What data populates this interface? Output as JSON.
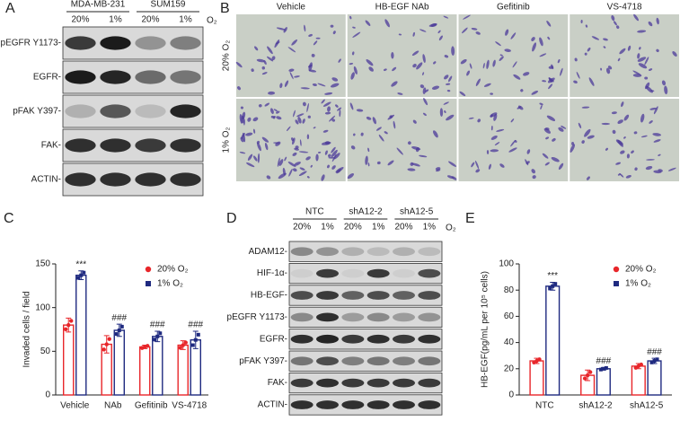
{
  "panels": {
    "A": {
      "letter": "A",
      "groups": [
        "MDA-MB-231",
        "SUM159"
      ],
      "lanes": [
        "20%",
        "1%",
        "20%",
        "1%"
      ],
      "gas": "O₂",
      "rows": [
        "pEGFR Y1173-",
        "EGFR-",
        "pFAK Y397-",
        "FAK-",
        "ACTIN-"
      ]
    },
    "B": {
      "letter": "B",
      "columns": [
        "Vehicle",
        "HB-EGF NAb",
        "Gefitinib",
        "VS-4718"
      ],
      "rows": [
        "20% O₂",
        "1% O₂"
      ]
    },
    "D": {
      "letter": "D",
      "groups": [
        "NTC",
        "shA12-2",
        "shA12-5"
      ],
      "lanes": [
        "20%",
        "1%",
        "20%",
        "1%",
        "20%",
        "1%"
      ],
      "gas": "O₂",
      "rows": [
        "ADAM12-",
        "HIF-1α-",
        "HB-EGF-",
        "pEGFR Y1173-",
        "EGFR-",
        "pFAK Y397-",
        "FAK-",
        "ACTIN-"
      ]
    }
  },
  "chart_data": [
    {
      "type": "bar",
      "panel_label": "C",
      "ylabel": "Invaded cells / field",
      "categories": [
        "Vehicle",
        "NAb",
        "Gefitinib",
        "VS-4718"
      ],
      "series": [
        {
          "name": "20% O₂",
          "color": "#e8262a",
          "values": [
            80,
            58,
            55,
            57
          ],
          "errors": [
            8,
            10,
            2,
            5
          ]
        },
        {
          "name": "1% O₂",
          "color": "#1f2a80",
          "values": [
            137,
            74,
            67,
            63
          ],
          "errors": [
            5,
            7,
            6,
            10
          ],
          "annotations": [
            "***",
            "###",
            "###",
            "###"
          ]
        }
      ],
      "ylim": [
        0,
        150
      ],
      "yticks": [
        0,
        50,
        100,
        150
      ]
    },
    {
      "type": "bar",
      "panel_label": "E",
      "ylabel": "HB-EGF(pg/mL per 10⁵ cells)",
      "categories": [
        "NTC",
        "shA12-2",
        "shA12-5"
      ],
      "series": [
        {
          "name": "20% O₂",
          "color": "#e8262a",
          "values": [
            26,
            15,
            22
          ],
          "errors": [
            2,
            4,
            2
          ]
        },
        {
          "name": "1% O₂",
          "color": "#1f2a80",
          "values": [
            83,
            20,
            26
          ],
          "errors": [
            3,
            1,
            2
          ],
          "annotations": [
            "***",
            "###",
            "###"
          ]
        }
      ],
      "ylim": [
        0,
        100
      ],
      "yticks": [
        0,
        20,
        40,
        60,
        80,
        100
      ]
    }
  ]
}
